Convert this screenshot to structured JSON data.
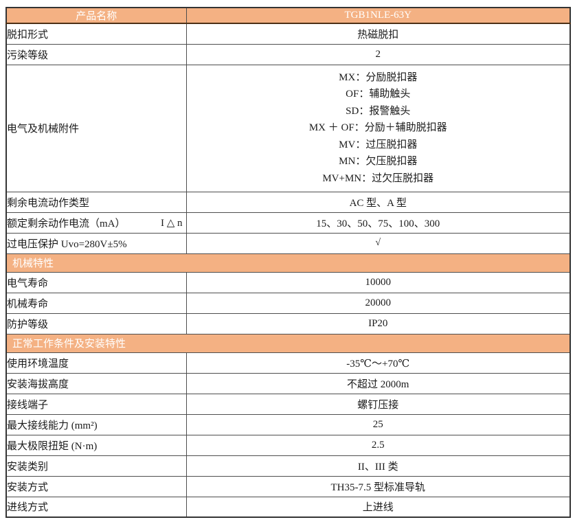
{
  "colors": {
    "accent_orange": "#F4B183",
    "header_text": "#FFFFFF",
    "border": "#4D4D4D"
  },
  "product_header": {
    "name_label": "产品名称",
    "model": "TGB1NLE-63Y"
  },
  "spec_rows": {
    "trip_type": {
      "label": "脱扣形式",
      "value": "热磁脱扣"
    },
    "pollution": {
      "label": "污染等级",
      "value": "2"
    },
    "accessories": {
      "label": "电气及机械附件",
      "lines": [
        "MX：分励脱扣器",
        "OF：辅助触头",
        "SD：报警触头",
        "MX ＋ OF：分励＋辅助脱扣器",
        "MV：过压脱扣器",
        "MN：欠压脱扣器",
        "MV+MN：过欠压脱扣器"
      ]
    },
    "residual_type": {
      "label": "剩余电流动作类型",
      "value": "AC 型、A 型"
    },
    "residual_current": {
      "label": "额定剩余动作电流（mA）",
      "label_suffix": "I △ n",
      "value": "15、30、50、75、100、300"
    },
    "overvoltage": {
      "label": "过电压保护 Uvo=280V±5%",
      "value": "√"
    }
  },
  "mechanical_section": {
    "title": "机械特性",
    "rows": {
      "electrical_life": {
        "label": "电气寿命",
        "value": "10000"
      },
      "mechanical_life": {
        "label": "机械寿命",
        "value": "20000"
      },
      "protection_grade": {
        "label": "防护等级",
        "value": "IP20"
      }
    }
  },
  "installation_section": {
    "title": "正常工作条件及安装特性",
    "rows": {
      "ambient_temp": {
        "label": "使用环境温度",
        "value": "-35℃～+70℃"
      },
      "altitude": {
        "label": "安装海拔高度",
        "value": "不超过 2000m"
      },
      "terminal": {
        "label": "接线端子",
        "value": "螺钉压接"
      },
      "wire_capacity": {
        "label": "最大接线能力 (mm²)",
        "value": "25"
      },
      "torque": {
        "label": "最大极限扭矩 (N·m)",
        "value": "2.5"
      },
      "install_category": {
        "label": "安装类别",
        "value": "II、III 类"
      },
      "mounting": {
        "label": "安装方式",
        "value": "TH35-7.5 型标准导轨"
      },
      "incoming_line": {
        "label": "进线方式",
        "value": "上进线"
      }
    }
  }
}
